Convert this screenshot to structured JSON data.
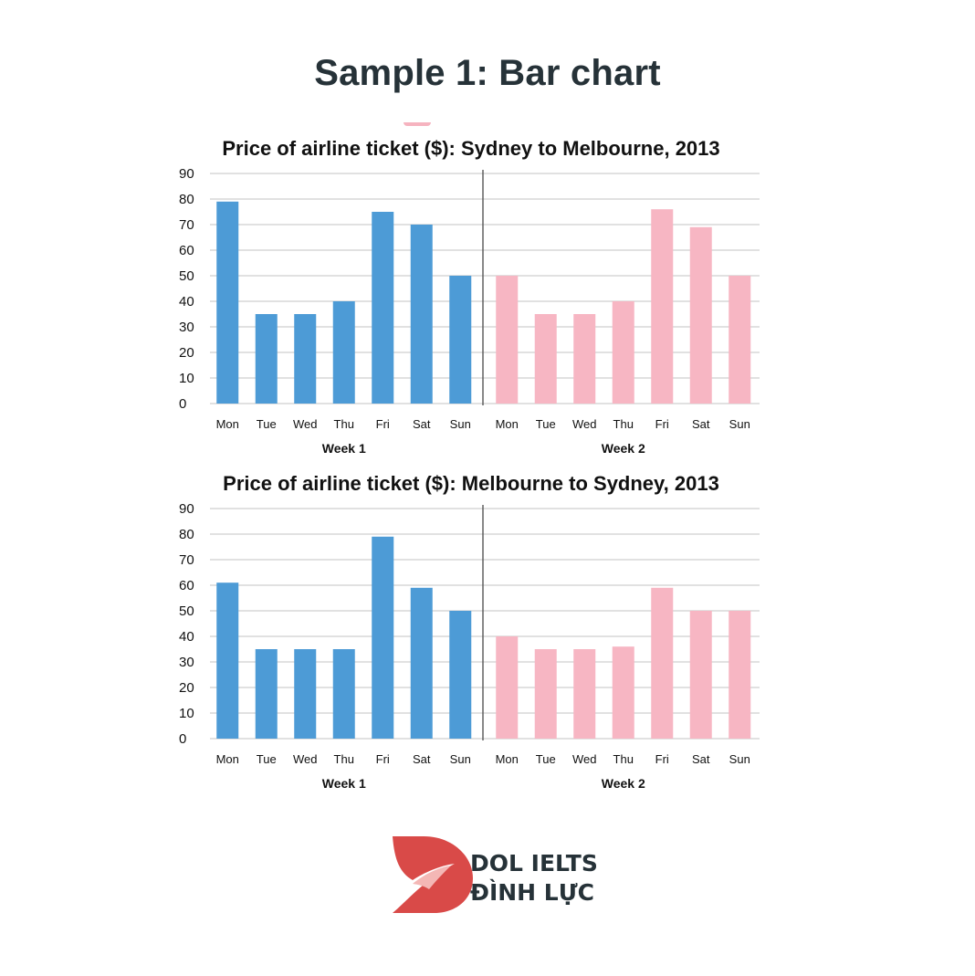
{
  "header": {
    "title": "Sample 1: Bar chart"
  },
  "brand": {
    "line1": "DOL IELTS",
    "line2": "ĐÌNH LỰC"
  },
  "colors": {
    "week1": "#4d9bd6",
    "week2": "#f7b6c3",
    "grid": "#cfcfcf",
    "divider": "#555555",
    "text": "#111111"
  },
  "chart_data": [
    {
      "type": "bar",
      "title": "Price of airline ticket ($): Sydney to Melbourne, 2013",
      "categories": [
        "Mon",
        "Tue",
        "Wed",
        "Thu",
        "Fri",
        "Sat",
        "Sun"
      ],
      "groups": [
        "Week 1",
        "Week 2"
      ],
      "series": [
        {
          "name": "Week 1",
          "values": [
            79,
            35,
            35,
            40,
            75,
            70,
            50
          ]
        },
        {
          "name": "Week 2",
          "values": [
            50,
            35,
            35,
            40,
            76,
            69,
            50
          ]
        }
      ],
      "ylim": [
        0,
        90
      ],
      "yticks": [
        0,
        10,
        20,
        30,
        40,
        50,
        60,
        70,
        80,
        90
      ],
      "grid": true
    },
    {
      "type": "bar",
      "title": "Price of airline ticket ($): Melbourne to Sydney, 2013",
      "categories": [
        "Mon",
        "Tue",
        "Wed",
        "Thu",
        "Fri",
        "Sat",
        "Sun"
      ],
      "groups": [
        "Week 1",
        "Week 2"
      ],
      "series": [
        {
          "name": "Week 1",
          "values": [
            61,
            35,
            35,
            35,
            79,
            59,
            50
          ]
        },
        {
          "name": "Week 2",
          "values": [
            40,
            35,
            35,
            36,
            59,
            50,
            50
          ]
        }
      ],
      "ylim": [
        0,
        90
      ],
      "yticks": [
        0,
        10,
        20,
        30,
        40,
        50,
        60,
        70,
        80,
        90
      ],
      "grid": true
    }
  ]
}
